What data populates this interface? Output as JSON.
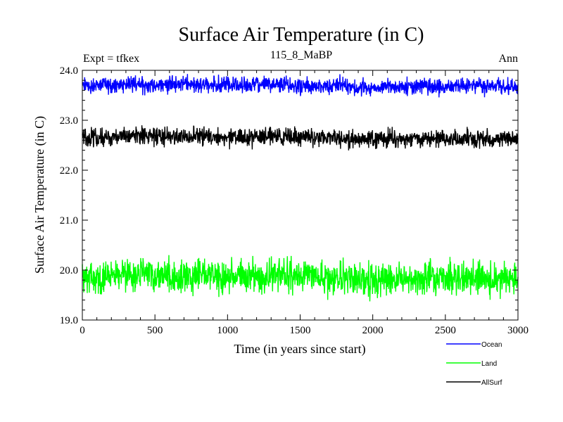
{
  "chart_data": {
    "type": "line",
    "title": "Surface Air Temperature (in C)",
    "subtitle_left": "Expt = tfkex",
    "subtitle_center": "115_8_MaBP",
    "subtitle_right": "Ann",
    "xlabel": "Time (in years since start)",
    "ylabel": "Surface Air Temperature (in C)",
    "xlim": [
      0,
      3000
    ],
    "ylim": [
      19.0,
      24.0
    ],
    "x_ticks": [
      0,
      500,
      1000,
      1500,
      2000,
      2500,
      3000
    ],
    "y_ticks": [
      19.0,
      20.0,
      21.0,
      22.0,
      23.0,
      24.0
    ],
    "x_tick_labels": [
      "0",
      "500",
      "1000",
      "1500",
      "2000",
      "2500",
      "3000"
    ],
    "y_tick_labels": [
      "19.0",
      "20.0",
      "21.0",
      "22.0",
      "23.0",
      "24.0"
    ],
    "grid": false,
    "legend_position": "bottom-right",
    "series": [
      {
        "name": "Ocean",
        "color": "#0000ff",
        "x": [
          0,
          100,
          200,
          300,
          400,
          500,
          600,
          700,
          800,
          900,
          1000,
          1100,
          1200,
          1300,
          1400,
          1500,
          1600,
          1700,
          1800,
          1900,
          2000,
          2100,
          2200,
          2300,
          2400,
          2500,
          2600,
          2700,
          2800,
          2900,
          3000
        ],
        "values": [
          23.7,
          23.69,
          23.71,
          23.72,
          23.7,
          23.71,
          23.72,
          23.73,
          23.71,
          23.72,
          23.7,
          23.69,
          23.71,
          23.72,
          23.71,
          23.7,
          23.69,
          23.68,
          23.7,
          23.64,
          23.66,
          23.68,
          23.67,
          23.68,
          23.68,
          23.66,
          23.68,
          23.69,
          23.66,
          23.68,
          23.68
        ],
        "variability": 0.08
      },
      {
        "name": "Land",
        "color": "#00ff00",
        "x": [
          0,
          100,
          200,
          300,
          400,
          500,
          600,
          700,
          800,
          900,
          1000,
          1100,
          1200,
          1300,
          1400,
          1500,
          1600,
          1700,
          1800,
          1900,
          2000,
          2100,
          2200,
          2300,
          2400,
          2500,
          2600,
          2700,
          2800,
          2900,
          3000
        ],
        "values": [
          19.86,
          19.85,
          19.88,
          19.87,
          19.9,
          19.88,
          19.86,
          19.87,
          19.89,
          19.88,
          19.86,
          19.87,
          19.88,
          19.9,
          19.89,
          19.86,
          19.85,
          19.86,
          19.84,
          19.78,
          19.82,
          19.84,
          19.83,
          19.84,
          19.85,
          19.82,
          19.83,
          19.85,
          19.8,
          19.83,
          19.84
        ],
        "variability": 0.16
      },
      {
        "name": "AllSurf",
        "color": "#000000",
        "x": [
          0,
          100,
          200,
          300,
          400,
          500,
          600,
          700,
          800,
          900,
          1000,
          1100,
          1200,
          1300,
          1400,
          1500,
          1600,
          1700,
          1800,
          1900,
          2000,
          2100,
          2200,
          2300,
          2400,
          2500,
          2600,
          2700,
          2800,
          2900,
          3000
        ],
        "values": [
          22.66,
          22.65,
          22.67,
          22.67,
          22.68,
          22.67,
          22.67,
          22.68,
          22.67,
          22.68,
          22.66,
          22.66,
          22.67,
          22.68,
          22.67,
          22.66,
          22.65,
          22.64,
          22.66,
          22.6,
          22.62,
          22.64,
          22.63,
          22.64,
          22.64,
          22.62,
          22.63,
          22.64,
          22.6,
          22.63,
          22.64
        ],
        "variability": 0.09
      }
    ]
  }
}
